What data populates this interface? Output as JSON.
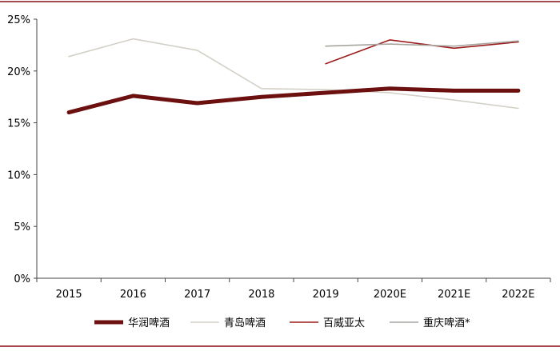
{
  "chart_data": {
    "type": "line",
    "title": "",
    "xlabel": "",
    "ylabel": "",
    "categories": [
      "2015",
      "2016",
      "2017",
      "2018",
      "2019",
      "2020E",
      "2021E",
      "2022E"
    ],
    "y_tick_labels": [
      "0%",
      "5%",
      "10%",
      "15%",
      "20%",
      "25%"
    ],
    "ylim": [
      0,
      25
    ],
    "grid": false,
    "legend_position": "bottom",
    "series": [
      {
        "name": "华润啤酒",
        "color": "#6b0f0f",
        "width": "thick",
        "values": [
          16.0,
          17.6,
          16.9,
          17.5,
          17.9,
          18.3,
          18.1,
          18.1
        ]
      },
      {
        "name": "青岛啤酒",
        "color": "#d3d0c6",
        "width": "thin",
        "values": [
          21.4,
          23.1,
          22.0,
          18.3,
          18.2,
          17.9,
          17.2,
          16.4
        ]
      },
      {
        "name": "百威亚太",
        "color": "#9b1c1c",
        "width": "thin",
        "values": [
          null,
          null,
          null,
          null,
          20.7,
          23.0,
          22.2,
          22.8
        ]
      },
      {
        "name": "重庆啤酒*",
        "color": "#a9a6a0",
        "width": "thin",
        "values": [
          null,
          null,
          null,
          null,
          22.4,
          22.6,
          22.4,
          22.9
        ]
      }
    ]
  }
}
